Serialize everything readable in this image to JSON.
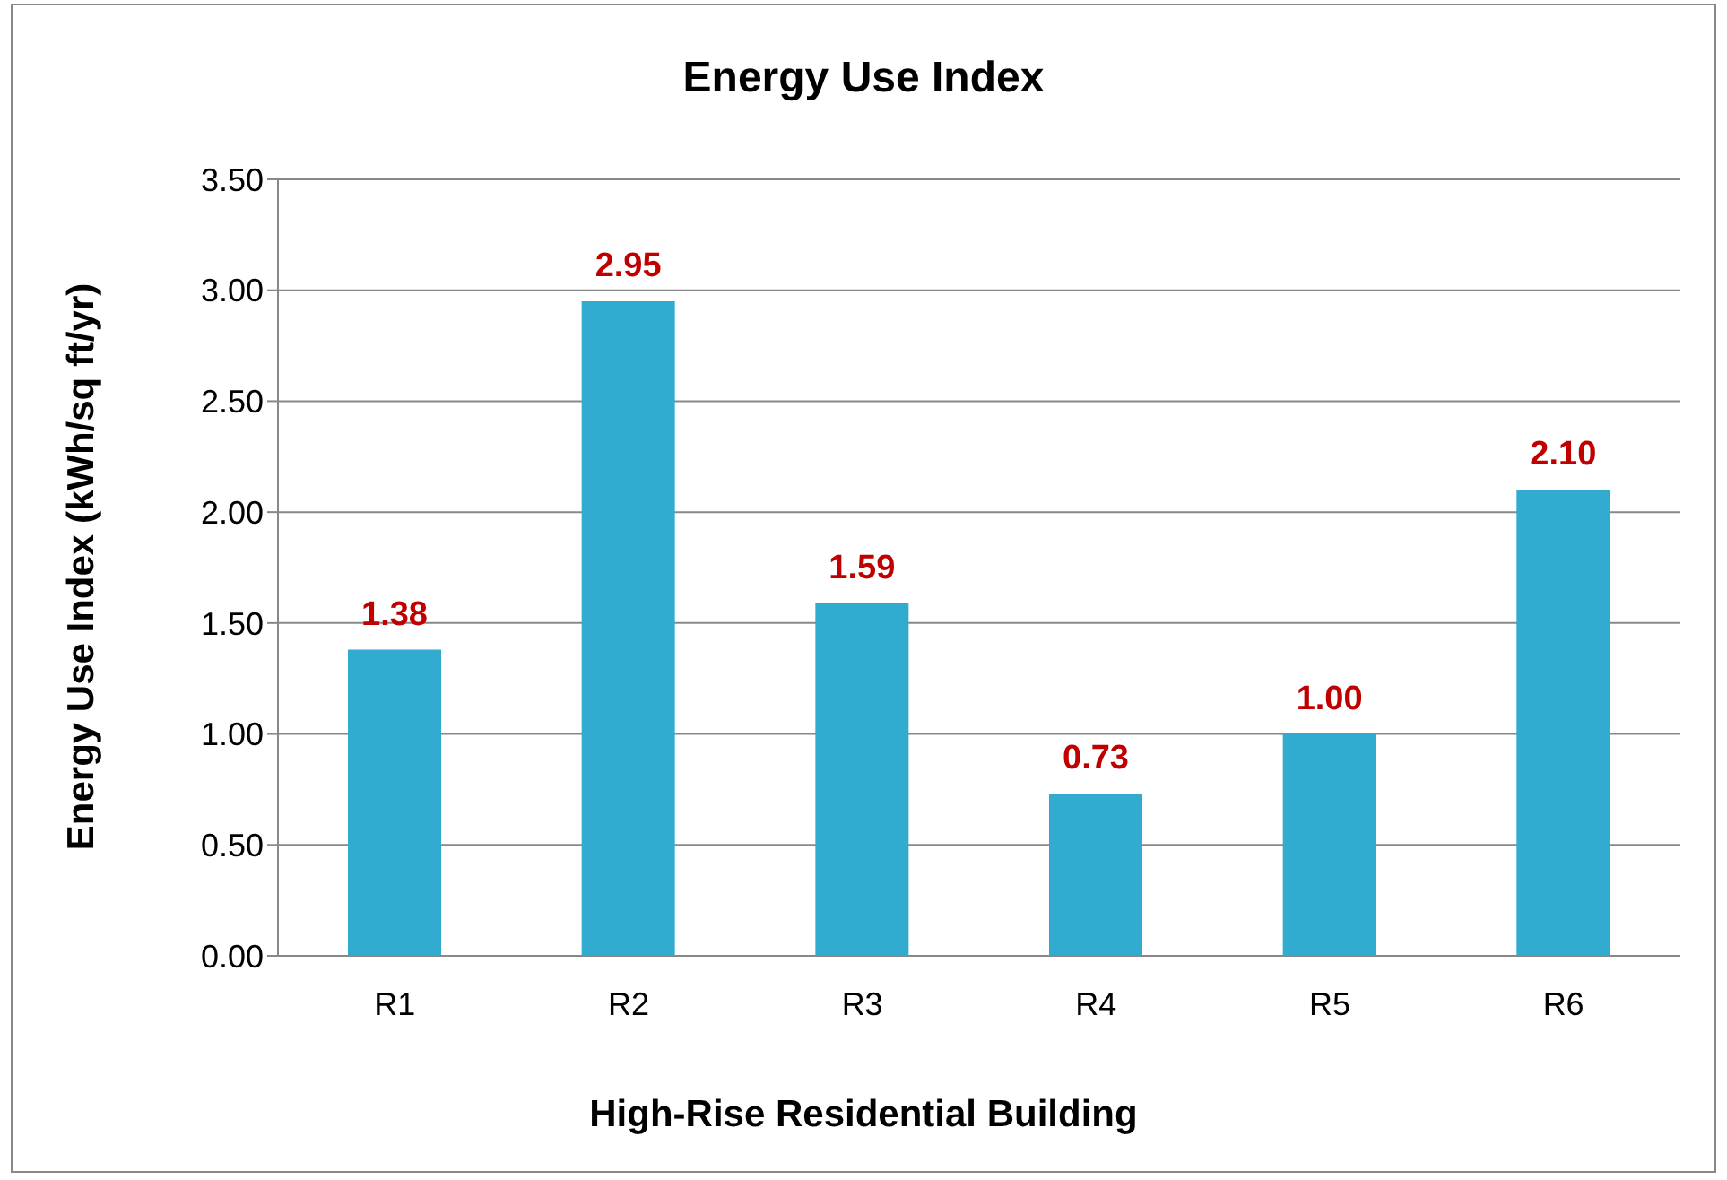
{
  "chart_data": {
    "type": "bar",
    "title": "Energy Use Index",
    "xlabel": "High-Rise Residential Building",
    "ylabel": "Energy Use Index (kWh/sq ft/yr)",
    "categories": [
      "R1",
      "R2",
      "R3",
      "R4",
      "R5",
      "R6"
    ],
    "values": [
      1.38,
      2.95,
      1.59,
      0.73,
      1.0,
      2.1
    ],
    "value_labels": [
      "1.38",
      "2.95",
      "1.59",
      "0.73",
      "1.00",
      "2.10"
    ],
    "color": "#31abd0",
    "ylim": [
      0,
      3.5
    ],
    "yticks": [
      {
        "value": 0,
        "label": "0.00"
      },
      {
        "value": 0.5,
        "label": "0.50"
      },
      {
        "value": 1,
        "label": "1.00"
      },
      {
        "value": 1.5,
        "label": "1.50"
      },
      {
        "value": 2,
        "label": "2.00"
      },
      {
        "value": 2.5,
        "label": "2.50"
      },
      {
        "value": 3,
        "label": "3.00"
      },
      {
        "value": 3.5,
        "label": "3.50"
      }
    ],
    "grid": "y",
    "legend": false
  }
}
